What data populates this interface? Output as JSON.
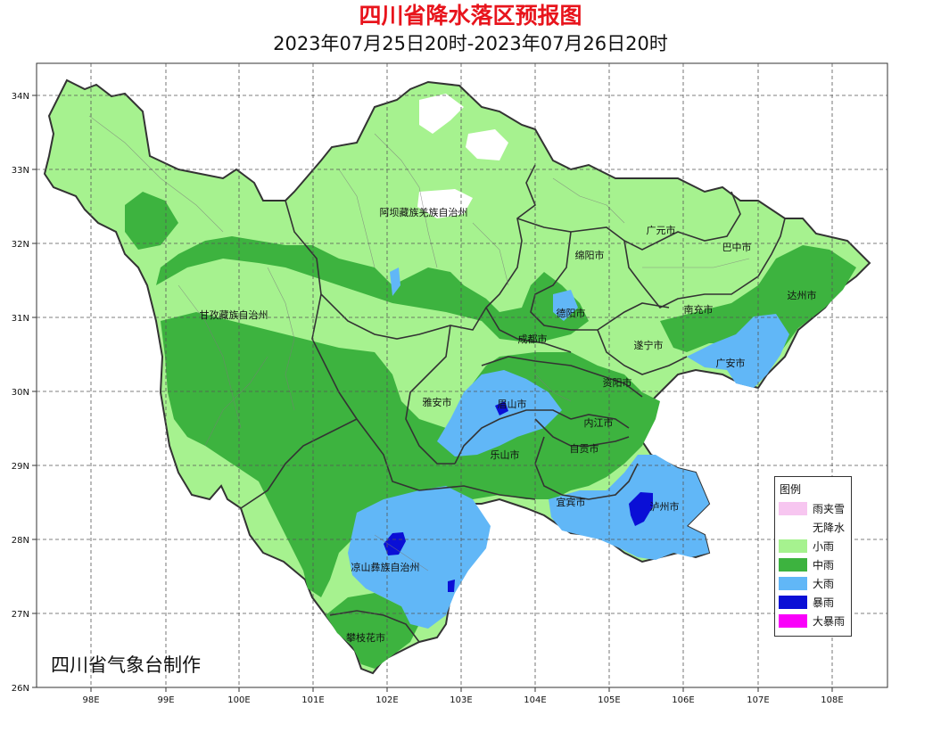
{
  "header": {
    "title": "四川省降水落区预报图",
    "subtitle": "2023年07月25日20时-2023年07月26日20时"
  },
  "axes": {
    "lon_labels": [
      "98E",
      "99E",
      "100E",
      "101E",
      "102E",
      "103E",
      "104E",
      "105E",
      "106E",
      "107E",
      "108E"
    ],
    "lat_labels": [
      "34N",
      "33N",
      "32N",
      "31N",
      "30N",
      "29N",
      "28N",
      "27N",
      "26N"
    ]
  },
  "cities": [
    {
      "name": "阿坝藏族羌族自治州"
    },
    {
      "name": "甘孜藏族自治州"
    },
    {
      "name": "广元市"
    },
    {
      "name": "巴中市"
    },
    {
      "name": "绵阳市"
    },
    {
      "name": "达州市"
    },
    {
      "name": "德阳市"
    },
    {
      "name": "南充市"
    },
    {
      "name": "成都市"
    },
    {
      "name": "遂宁市"
    },
    {
      "name": "广安市"
    },
    {
      "name": "雅安市"
    },
    {
      "name": "资阳市"
    },
    {
      "name": "眉山市"
    },
    {
      "name": "内江市"
    },
    {
      "name": "乐山市"
    },
    {
      "name": "自贡市"
    },
    {
      "name": "宜宾市"
    },
    {
      "name": "泸州市"
    },
    {
      "name": "凉山彝族自治州"
    },
    {
      "name": "攀枝花市"
    }
  ],
  "legend": {
    "title": "图例",
    "items": [
      {
        "label": "雨夹雪",
        "color": "#f7c6f0"
      },
      {
        "label": "无降水",
        "color": "#ffffff"
      },
      {
        "label": "小雨",
        "color": "#a6f28f"
      },
      {
        "label": "中雨",
        "color": "#3db33f"
      },
      {
        "label": "大雨",
        "color": "#61b7f7"
      },
      {
        "label": "暴雨",
        "color": "#0a0fd6"
      },
      {
        "label": "大暴雨",
        "color": "#fa00fa"
      }
    ]
  },
  "credit": "四川省气象台制作"
}
